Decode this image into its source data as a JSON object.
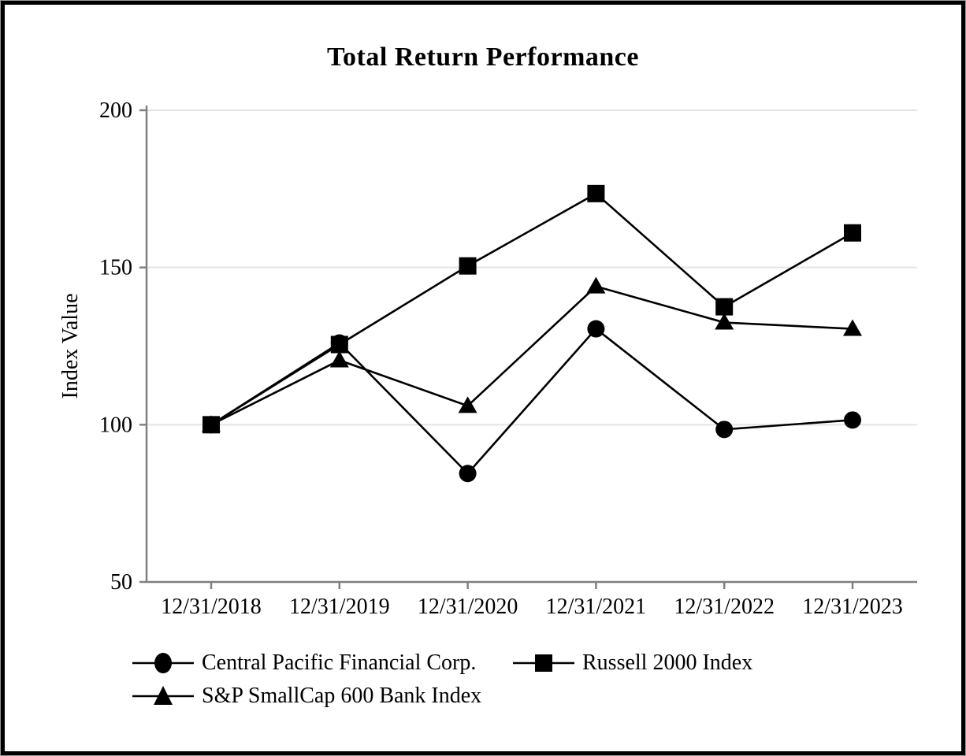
{
  "title": "Total Return Performance",
  "chart_data": {
    "type": "line",
    "title": "Total Return Performance",
    "xlabel": "",
    "ylabel": "Index Value",
    "x": [
      "12/31/2018",
      "12/31/2019",
      "12/31/2020",
      "12/31/2021",
      "12/31/2022",
      "12/31/2023"
    ],
    "series": [
      {
        "name": "Central Pacific Financial Corp.",
        "marker": "circle",
        "values": [
          100,
          126,
          84.5,
          130.5,
          98.5,
          101.5
        ]
      },
      {
        "name": "Russell 2000 Index",
        "marker": "square",
        "values": [
          100,
          125.5,
          150.5,
          173.5,
          137.5,
          161
        ]
      },
      {
        "name": "S&P SmallCap 600 Bank Index",
        "marker": "triangle",
        "values": [
          100,
          120.5,
          106,
          144,
          132.5,
          130.5
        ]
      }
    ],
    "ylim": [
      50,
      200
    ],
    "yticks": [
      50,
      100,
      150,
      200
    ],
    "grid": "horizontal-gridlines-at-100-150-200",
    "legend_position": "bottom-left-two-columns",
    "colors": {
      "series": "#000000",
      "axis": "#808080",
      "gridline": "#e4e4e4",
      "text": "#000000",
      "background": "#ffffff",
      "frame_border": "#000000"
    }
  }
}
